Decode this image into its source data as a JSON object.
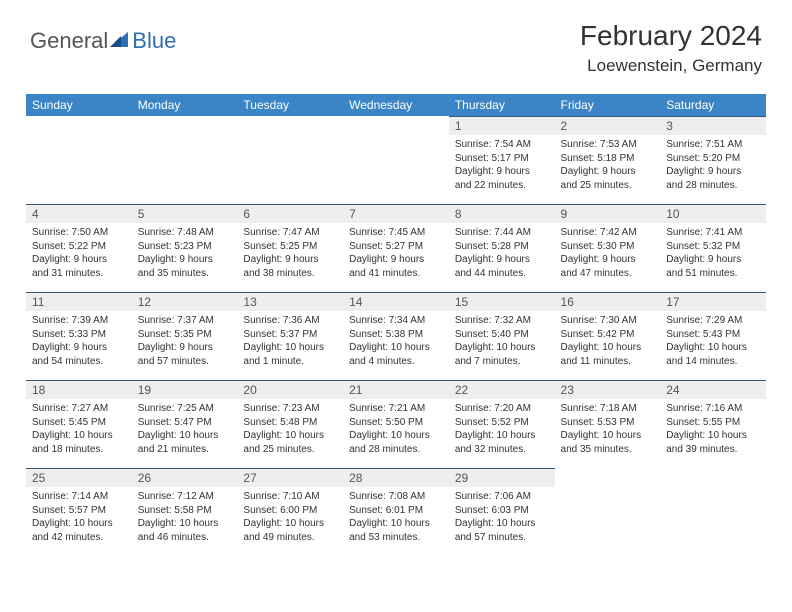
{
  "logo": {
    "text_general": "General",
    "text_blue": "Blue"
  },
  "title": "February 2024",
  "location": "Loewenstein, Germany",
  "colors": {
    "header_bg": "#3b85c6",
    "header_text": "#ffffff",
    "daynum_bg": "#eeeeee",
    "daynum_border": "#33557f",
    "body_text": "#333333",
    "logo_gray": "#555555",
    "logo_blue": "#2e6fb5",
    "page_bg": "#ffffff"
  },
  "day_headers": [
    "Sunday",
    "Monday",
    "Tuesday",
    "Wednesday",
    "Thursday",
    "Friday",
    "Saturday"
  ],
  "weeks": [
    [
      null,
      null,
      null,
      null,
      {
        "n": "1",
        "sr": "7:54 AM",
        "ss": "5:17 PM",
        "dl": "9 hours and 22 minutes."
      },
      {
        "n": "2",
        "sr": "7:53 AM",
        "ss": "5:18 PM",
        "dl": "9 hours and 25 minutes."
      },
      {
        "n": "3",
        "sr": "7:51 AM",
        "ss": "5:20 PM",
        "dl": "9 hours and 28 minutes."
      }
    ],
    [
      {
        "n": "4",
        "sr": "7:50 AM",
        "ss": "5:22 PM",
        "dl": "9 hours and 31 minutes."
      },
      {
        "n": "5",
        "sr": "7:48 AM",
        "ss": "5:23 PM",
        "dl": "9 hours and 35 minutes."
      },
      {
        "n": "6",
        "sr": "7:47 AM",
        "ss": "5:25 PM",
        "dl": "9 hours and 38 minutes."
      },
      {
        "n": "7",
        "sr": "7:45 AM",
        "ss": "5:27 PM",
        "dl": "9 hours and 41 minutes."
      },
      {
        "n": "8",
        "sr": "7:44 AM",
        "ss": "5:28 PM",
        "dl": "9 hours and 44 minutes."
      },
      {
        "n": "9",
        "sr": "7:42 AM",
        "ss": "5:30 PM",
        "dl": "9 hours and 47 minutes."
      },
      {
        "n": "10",
        "sr": "7:41 AM",
        "ss": "5:32 PM",
        "dl": "9 hours and 51 minutes."
      }
    ],
    [
      {
        "n": "11",
        "sr": "7:39 AM",
        "ss": "5:33 PM",
        "dl": "9 hours and 54 minutes."
      },
      {
        "n": "12",
        "sr": "7:37 AM",
        "ss": "5:35 PM",
        "dl": "9 hours and 57 minutes."
      },
      {
        "n": "13",
        "sr": "7:36 AM",
        "ss": "5:37 PM",
        "dl": "10 hours and 1 minute."
      },
      {
        "n": "14",
        "sr": "7:34 AM",
        "ss": "5:38 PM",
        "dl": "10 hours and 4 minutes."
      },
      {
        "n": "15",
        "sr": "7:32 AM",
        "ss": "5:40 PM",
        "dl": "10 hours and 7 minutes."
      },
      {
        "n": "16",
        "sr": "7:30 AM",
        "ss": "5:42 PM",
        "dl": "10 hours and 11 minutes."
      },
      {
        "n": "17",
        "sr": "7:29 AM",
        "ss": "5:43 PM",
        "dl": "10 hours and 14 minutes."
      }
    ],
    [
      {
        "n": "18",
        "sr": "7:27 AM",
        "ss": "5:45 PM",
        "dl": "10 hours and 18 minutes."
      },
      {
        "n": "19",
        "sr": "7:25 AM",
        "ss": "5:47 PM",
        "dl": "10 hours and 21 minutes."
      },
      {
        "n": "20",
        "sr": "7:23 AM",
        "ss": "5:48 PM",
        "dl": "10 hours and 25 minutes."
      },
      {
        "n": "21",
        "sr": "7:21 AM",
        "ss": "5:50 PM",
        "dl": "10 hours and 28 minutes."
      },
      {
        "n": "22",
        "sr": "7:20 AM",
        "ss": "5:52 PM",
        "dl": "10 hours and 32 minutes."
      },
      {
        "n": "23",
        "sr": "7:18 AM",
        "ss": "5:53 PM",
        "dl": "10 hours and 35 minutes."
      },
      {
        "n": "24",
        "sr": "7:16 AM",
        "ss": "5:55 PM",
        "dl": "10 hours and 39 minutes."
      }
    ],
    [
      {
        "n": "25",
        "sr": "7:14 AM",
        "ss": "5:57 PM",
        "dl": "10 hours and 42 minutes."
      },
      {
        "n": "26",
        "sr": "7:12 AM",
        "ss": "5:58 PM",
        "dl": "10 hours and 46 minutes."
      },
      {
        "n": "27",
        "sr": "7:10 AM",
        "ss": "6:00 PM",
        "dl": "10 hours and 49 minutes."
      },
      {
        "n": "28",
        "sr": "7:08 AM",
        "ss": "6:01 PM",
        "dl": "10 hours and 53 minutes."
      },
      {
        "n": "29",
        "sr": "7:06 AM",
        "ss": "6:03 PM",
        "dl": "10 hours and 57 minutes."
      },
      null,
      null
    ]
  ],
  "labels": {
    "sunrise": "Sunrise:",
    "sunset": "Sunset:",
    "daylight": "Daylight:"
  }
}
